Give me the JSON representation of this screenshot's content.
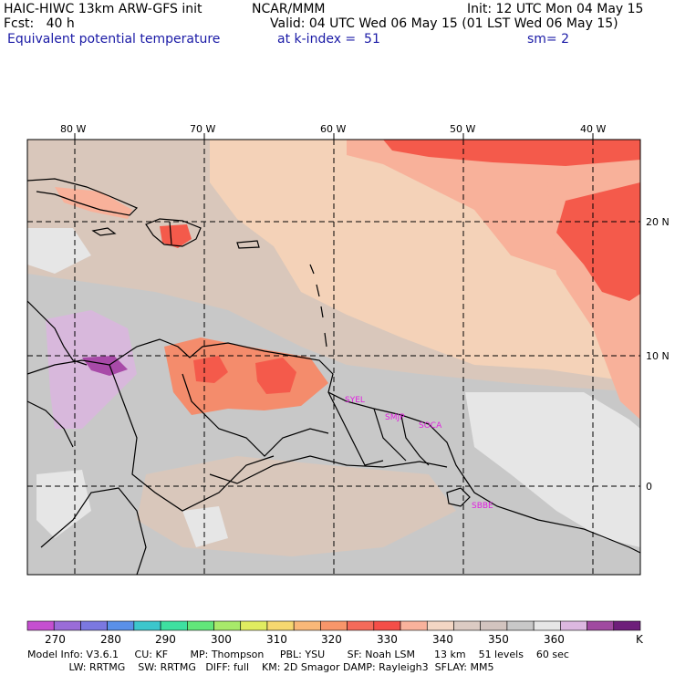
{
  "header": {
    "model": "HAIC-HIWC 13km ARW-GFS init",
    "org": "NCAR/MMM",
    "init": "Init: 12 UTC Mon 04 May 15",
    "fcst": "Fcst:   40 h",
    "valid": "Valid: 04 UTC Wed 06 May 15 (01 LST Wed 06 May 15)",
    "field": "Equivalent potential temperature",
    "level": "at k-index =  51",
    "smooth": "sm= 2"
  },
  "map": {
    "lon_labels": [
      "80 W",
      "70 W",
      "60 W",
      "50 W",
      "40 W"
    ],
    "lat_labels": [
      "20 N",
      "10 N",
      "0"
    ],
    "places": [
      "SYEL",
      "SMJP",
      "SOCA",
      "SBBE"
    ],
    "colors": {
      "gray": "#c8c8c8",
      "light": "#e6e6e6",
      "tan": "#d9c7bb",
      "peach": "#f4d2b8",
      "salmon": "#f8b19a",
      "orange": "#f48c6c",
      "red": "#f45a4b",
      "lavender": "#d8b8dc",
      "purple": "#a84aa8"
    }
  },
  "colorbar": {
    "labels": [
      "270",
      "280",
      "290",
      "300",
      "310",
      "320",
      "330",
      "340",
      "350",
      "360",
      "K"
    ],
    "colors": [
      "#c54fd0",
      "#9a6cd8",
      "#7b78e0",
      "#5a90e8",
      "#3cc6cc",
      "#3ee0a0",
      "#62e67a",
      "#a8ea6a",
      "#e0ec60",
      "#f6d870",
      "#f9b878",
      "#f8966a",
      "#f46a5a",
      "#f44e48",
      "#f9b29c",
      "#f3d6c4",
      "#dccbc3",
      "#d2c4bf",
      "#c8c8c8",
      "#e6e6e6",
      "#dcb8e0",
      "#a04aa0",
      "#6e1f7a"
    ]
  },
  "footer": {
    "line1": "Model Info: V3.6.1     CU: KF       MP: Thompson     PBL: YSU       SF: Noah LSM      13 km    51 levels    60 sec",
    "line2": "             LW: RRTMG    SW: RRTMG   DIFF: full    KM: 2D Smagor DAMP: Rayleigh3  SFLAY: MM5"
  }
}
